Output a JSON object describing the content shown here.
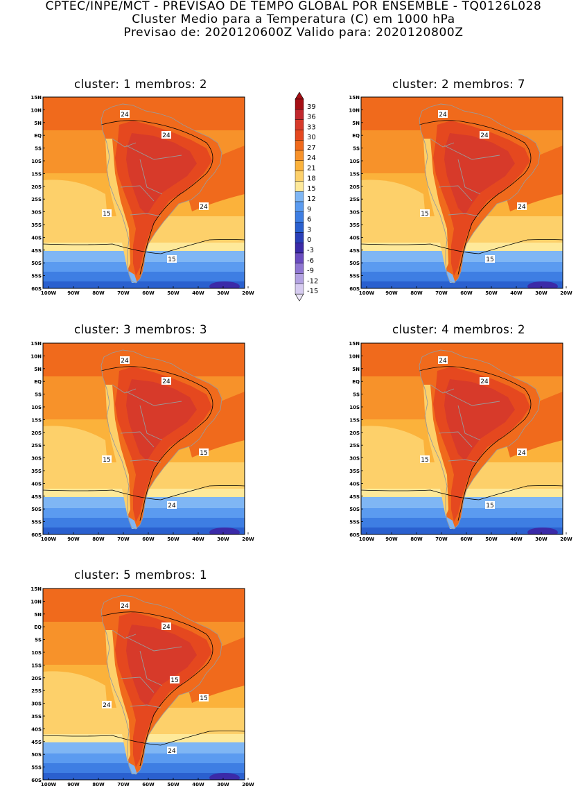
{
  "header": {
    "line1": "CPTEC/INPE/MCT - PREVISAO DE TEMPO GLOBAL POR ENSEMBLE - TQ0126L028",
    "line2": "Cluster Medio para a Temperatura (C) em 1000 hPa",
    "line3": "Previsao de: 2020120600Z    Valido para: 2020120800Z"
  },
  "axes": {
    "lat_labels": [
      "15N",
      "10N",
      "5N",
      "EQ",
      "5S",
      "10S",
      "15S",
      "20S",
      "25S",
      "30S",
      "35S",
      "40S",
      "45S",
      "50S",
      "55S",
      "60S"
    ],
    "lon_labels": [
      "100W",
      "90W",
      "80W",
      "70W",
      "60W",
      "50W",
      "40W",
      "30W",
      "20W"
    ]
  },
  "colorbar": {
    "levels": [
      "39",
      "36",
      "33",
      "30",
      "27",
      "24",
      "21",
      "18",
      "15",
      "12",
      "9",
      "6",
      "3",
      "0",
      "-3",
      "-6",
      "-9",
      "-12",
      "-15"
    ],
    "colors": [
      "#a50f15",
      "#c1272d",
      "#d73a2a",
      "#e5481f",
      "#f06a1c",
      "#f7922a",
      "#fbb23b",
      "#fdd06a",
      "#fee99a",
      "#7fb6f4",
      "#5b9bf0",
      "#3e7ee3",
      "#2a60cf",
      "#2a3fb8",
      "#3b2aa8",
      "#6a4cc0",
      "#8f76d2",
      "#b3a2e2",
      "#d6cbf0"
    ]
  },
  "clusters": [
    {
      "title": "cluster: 1   membros: 2",
      "labels": [
        "24",
        "24",
        "15",
        "24",
        "15"
      ]
    },
    {
      "title": "cluster: 2   membros: 7",
      "labels": [
        "24",
        "24",
        "15",
        "24",
        "15"
      ]
    },
    {
      "title": "cluster: 3   membros: 3",
      "labels": [
        "24",
        "24",
        "15",
        "15",
        "24"
      ]
    },
    {
      "title": "cluster: 4   membros: 2",
      "labels": [
        "24",
        "24",
        "15",
        "24",
        "15"
      ]
    },
    {
      "title": "cluster: 5   membros: 1",
      "labels": [
        "24",
        "24",
        "24",
        "15",
        "24",
        "15"
      ]
    }
  ]
}
